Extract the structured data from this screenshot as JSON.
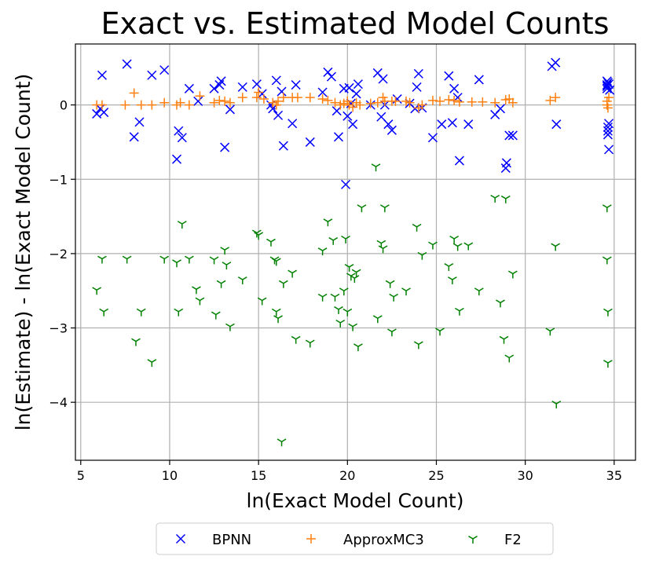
{
  "chart_data": {
    "type": "scatter",
    "title": "Exact vs. Estimated Model Counts",
    "xlabel": "ln(Exact Model Count)",
    "ylabel": "ln(Estimate) - ln(Exact Model Count)",
    "xlim": [
      4.7,
      36.2
    ],
    "ylim": [
      -4.78,
      0.82
    ],
    "xticks": [
      5,
      10,
      15,
      20,
      25,
      30,
      35
    ],
    "yticks": [
      -4,
      -3,
      -2,
      -1,
      0
    ],
    "xtick_labels": [
      "5",
      "10",
      "15",
      "20",
      "25",
      "30",
      "35"
    ],
    "ytick_labels": [
      "−4",
      "−3",
      "−2",
      "−1",
      "0"
    ],
    "grid": true,
    "legend_position": "bottom-center",
    "series": [
      {
        "name": "BPNN",
        "marker": "x",
        "color": "#0000ff",
        "points": [
          [
            5.9,
            -0.12
          ],
          [
            6.1,
            -0.05
          ],
          [
            6.2,
            0.4
          ],
          [
            6.3,
            -0.1
          ],
          [
            7.6,
            0.55
          ],
          [
            8.0,
            -0.43
          ],
          [
            8.3,
            -0.23
          ],
          [
            9.0,
            0.4
          ],
          [
            9.7,
            0.47
          ],
          [
            10.4,
            -0.73
          ],
          [
            10.5,
            -0.35
          ],
          [
            10.7,
            -0.44
          ],
          [
            11.1,
            0.22
          ],
          [
            11.6,
            0.05
          ],
          [
            12.5,
            0.22
          ],
          [
            12.8,
            0.27
          ],
          [
            12.9,
            0.32
          ],
          [
            13.1,
            -0.57
          ],
          [
            13.4,
            -0.06
          ],
          [
            14.1,
            0.24
          ],
          [
            14.9,
            0.28
          ],
          [
            15.2,
            0.15
          ],
          [
            15.7,
            0.0
          ],
          [
            15.8,
            -0.05
          ],
          [
            16.0,
            0.33
          ],
          [
            16.1,
            -0.14
          ],
          [
            16.3,
            0.18
          ],
          [
            16.4,
            -0.55
          ],
          [
            16.9,
            -0.25
          ],
          [
            17.1,
            0.27
          ],
          [
            17.9,
            -0.5
          ],
          [
            18.6,
            0.17
          ],
          [
            18.9,
            0.44
          ],
          [
            19.1,
            0.38
          ],
          [
            19.4,
            -0.08
          ],
          [
            19.5,
            -0.43
          ],
          [
            19.8,
            0.22
          ],
          [
            19.9,
            -1.07
          ],
          [
            20.0,
            -0.15
          ],
          [
            20.1,
            0.23
          ],
          [
            20.2,
            0.02
          ],
          [
            20.3,
            -0.26
          ],
          [
            20.5,
            0.15
          ],
          [
            20.6,
            0.28
          ],
          [
            21.3,
            0.0
          ],
          [
            21.7,
            0.43
          ],
          [
            21.9,
            -0.16
          ],
          [
            22.0,
            0.35
          ],
          [
            22.1,
            0.0
          ],
          [
            22.3,
            -0.26
          ],
          [
            22.5,
            -0.34
          ],
          [
            22.8,
            0.08
          ],
          [
            23.5,
            0.02
          ],
          [
            23.8,
            -0.05
          ],
          [
            23.9,
            0.24
          ],
          [
            24.0,
            0.42
          ],
          [
            24.2,
            -0.04
          ],
          [
            24.8,
            -0.44
          ],
          [
            25.3,
            -0.26
          ],
          [
            25.7,
            0.39
          ],
          [
            25.9,
            -0.24
          ],
          [
            26.0,
            0.22
          ],
          [
            26.2,
            0.1
          ],
          [
            26.3,
            -0.75
          ],
          [
            26.8,
            -0.26
          ],
          [
            27.4,
            0.34
          ],
          [
            28.3,
            -0.13
          ],
          [
            28.6,
            -0.05
          ],
          [
            28.9,
            -0.85
          ],
          [
            28.95,
            -0.78
          ],
          [
            29.1,
            -0.41
          ],
          [
            29.3,
            -0.41
          ],
          [
            31.5,
            0.52
          ],
          [
            31.7,
            0.57
          ],
          [
            31.75,
            -0.26
          ],
          [
            34.6,
            0.32
          ],
          [
            34.6,
            0.27
          ],
          [
            34.6,
            0.25
          ],
          [
            34.6,
            0.22
          ],
          [
            34.65,
            0.3
          ],
          [
            34.65,
            -0.3
          ],
          [
            34.65,
            -0.35
          ],
          [
            34.65,
            -0.4
          ],
          [
            34.7,
            -0.25
          ],
          [
            34.7,
            -0.6
          ],
          [
            34.7,
            0.28
          ],
          [
            34.75,
            0.2
          ]
        ]
      },
      {
        "name": "ApproxMC3",
        "marker": "+",
        "color": "#ff7f0e",
        "points": [
          [
            5.9,
            0.0
          ],
          [
            6.2,
            0.0
          ],
          [
            7.5,
            0.0
          ],
          [
            8.0,
            0.16
          ],
          [
            8.4,
            0.0
          ],
          [
            9.0,
            0.0
          ],
          [
            9.7,
            0.03
          ],
          [
            10.4,
            0.0
          ],
          [
            10.6,
            0.03
          ],
          [
            11.1,
            0.0
          ],
          [
            11.7,
            0.12
          ],
          [
            12.5,
            0.03
          ],
          [
            12.8,
            0.06
          ],
          [
            13.1,
            0.05
          ],
          [
            13.4,
            0.03
          ],
          [
            14.1,
            0.1
          ],
          [
            14.9,
            0.1
          ],
          [
            15.0,
            0.17
          ],
          [
            15.3,
            0.08
          ],
          [
            15.8,
            0.03
          ],
          [
            16.0,
            0.0
          ],
          [
            16.1,
            0.05
          ],
          [
            16.4,
            0.1
          ],
          [
            16.9,
            0.1
          ],
          [
            17.2,
            0.1
          ],
          [
            17.9,
            0.1
          ],
          [
            18.6,
            0.08
          ],
          [
            18.9,
            0.06
          ],
          [
            19.3,
            0.03
          ],
          [
            19.6,
            0.0
          ],
          [
            19.8,
            0.02
          ],
          [
            20.0,
            0.05
          ],
          [
            20.1,
            0.0
          ],
          [
            20.3,
            -0.03
          ],
          [
            20.5,
            0.03
          ],
          [
            20.7,
            0.0
          ],
          [
            21.3,
            0.02
          ],
          [
            21.7,
            0.03
          ],
          [
            22.0,
            0.1
          ],
          [
            22.1,
            0.05
          ],
          [
            22.5,
            0.05
          ],
          [
            22.7,
            0.05
          ],
          [
            23.3,
            0.05
          ],
          [
            23.5,
            0.03
          ],
          [
            24.0,
            -0.04
          ],
          [
            24.2,
            0.0
          ],
          [
            24.8,
            0.06
          ],
          [
            25.2,
            0.05
          ],
          [
            25.7,
            0.07
          ],
          [
            26.0,
            0.06
          ],
          [
            26.3,
            0.04
          ],
          [
            27.0,
            0.04
          ],
          [
            27.6,
            0.04
          ],
          [
            28.3,
            0.03
          ],
          [
            28.9,
            0.07
          ],
          [
            29.1,
            0.08
          ],
          [
            29.3,
            0.03
          ],
          [
            31.4,
            0.06
          ],
          [
            31.7,
            0.1
          ],
          [
            34.6,
            0.0
          ],
          [
            34.6,
            0.05
          ],
          [
            34.65,
            -0.04
          ],
          [
            34.7,
            0.1
          ]
        ]
      },
      {
        "name": "F2",
        "marker": "tri_down",
        "color": "#008000",
        "points": [
          [
            5.9,
            -2.49
          ],
          [
            6.2,
            -2.07
          ],
          [
            6.3,
            -2.78
          ],
          [
            7.6,
            -2.07
          ],
          [
            8.1,
            -3.18
          ],
          [
            8.4,
            -2.78
          ],
          [
            9.0,
            -3.46
          ],
          [
            9.7,
            -2.07
          ],
          [
            10.4,
            -2.12
          ],
          [
            10.5,
            -2.78
          ],
          [
            10.7,
            -1.6
          ],
          [
            11.1,
            -2.07
          ],
          [
            11.7,
            -2.63
          ],
          [
            11.5,
            -2.48
          ],
          [
            12.5,
            -2.08
          ],
          [
            12.6,
            -2.82
          ],
          [
            12.9,
            -2.4
          ],
          [
            13.1,
            -1.95
          ],
          [
            13.2,
            -2.15
          ],
          [
            13.4,
            -2.98
          ],
          [
            14.1,
            -2.35
          ],
          [
            14.9,
            -1.72
          ],
          [
            15.0,
            -1.75
          ],
          [
            15.2,
            -2.63
          ],
          [
            15.7,
            -1.84
          ],
          [
            15.9,
            -2.08
          ],
          [
            16.0,
            -2.1
          ],
          [
            16.0,
            -2.78
          ],
          [
            16.1,
            -2.87
          ],
          [
            16.3,
            -4.53
          ],
          [
            16.4,
            -2.4
          ],
          [
            16.9,
            -2.26
          ],
          [
            17.1,
            -3.15
          ],
          [
            17.9,
            -3.2
          ],
          [
            18.6,
            -1.96
          ],
          [
            18.6,
            -2.58
          ],
          [
            18.9,
            -1.57
          ],
          [
            19.2,
            -1.82
          ],
          [
            19.3,
            -2.58
          ],
          [
            19.5,
            -2.75
          ],
          [
            19.6,
            -2.93
          ],
          [
            19.8,
            -2.5
          ],
          [
            19.9,
            -1.8
          ],
          [
            20.0,
            -2.78
          ],
          [
            20.1,
            -2.18
          ],
          [
            20.2,
            -2.3
          ],
          [
            20.3,
            -2.98
          ],
          [
            20.4,
            -2.33
          ],
          [
            20.5,
            -2.25
          ],
          [
            20.6,
            -3.25
          ],
          [
            20.8,
            -1.38
          ],
          [
            21.6,
            -0.83
          ],
          [
            21.7,
            -2.87
          ],
          [
            21.9,
            -1.86
          ],
          [
            22.0,
            -1.93
          ],
          [
            22.1,
            -1.38
          ],
          [
            22.4,
            -2.4
          ],
          [
            22.5,
            -3.05
          ],
          [
            22.6,
            -2.58
          ],
          [
            23.3,
            -2.5
          ],
          [
            23.9,
            -1.64
          ],
          [
            24.0,
            -3.22
          ],
          [
            24.2,
            -2.02
          ],
          [
            24.8,
            -1.88
          ],
          [
            25.2,
            -3.04
          ],
          [
            25.7,
            -2.17
          ],
          [
            25.9,
            -2.35
          ],
          [
            26.0,
            -1.8
          ],
          [
            26.2,
            -1.9
          ],
          [
            26.3,
            -2.77
          ],
          [
            26.8,
            -1.89
          ],
          [
            27.4,
            -2.5
          ],
          [
            28.3,
            -1.25
          ],
          [
            28.6,
            -2.66
          ],
          [
            28.8,
            -3.15
          ],
          [
            28.9,
            -1.26
          ],
          [
            29.1,
            -3.4
          ],
          [
            29.3,
            -2.27
          ],
          [
            31.4,
            -3.04
          ],
          [
            31.7,
            -1.9
          ],
          [
            31.75,
            -4.02
          ],
          [
            34.6,
            -1.38
          ],
          [
            34.6,
            -2.08
          ],
          [
            34.65,
            -2.78
          ],
          [
            34.65,
            -3.47
          ]
        ]
      }
    ]
  }
}
